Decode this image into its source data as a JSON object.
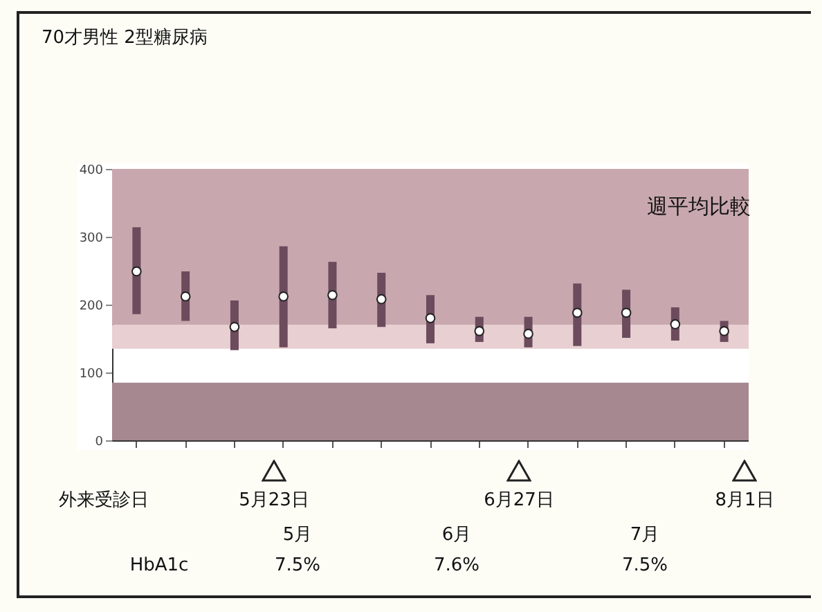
{
  "chart_data": {
    "type": "bar",
    "title": "70才男性  2型糖尿病",
    "categories": [
      null,
      null,
      null,
      null,
      null,
      null,
      null,
      null,
      null,
      null,
      null,
      null,
      null
    ],
    "series": [
      {
        "color": "#6b4b5c",
        "base": [
          186,
          176,
          133,
          137,
          165,
          167,
          143,
          145,
          137,
          139,
          151,
          147,
          145
        ],
        "values": [
          128,
          73,
          73,
          149,
          98,
          80,
          71,
          37,
          45,
          92,
          71,
          49,
          31
        ]
      },
      {
        "type": "scatter",
        "color": "#ffffff",
        "values": [
          249,
          212,
          167,
          212,
          214,
          208,
          180,
          161,
          157,
          188,
          188,
          171,
          161
        ]
      }
    ],
    "marker": "circle",
    "ylim": [
      0,
      400
    ],
    "yticks": [
      0,
      100,
      200,
      300,
      400
    ],
    "bands": [
      {
        "axis": "y",
        "from": 170,
        "to": 400,
        "color": "#c8a8ae"
      },
      {
        "axis": "y",
        "from": 135,
        "to": 170,
        "color": "#e8cfd2"
      },
      {
        "axis": "y",
        "from": 0,
        "to": 85,
        "color": "#a58890"
      }
    ],
    "annotations": [
      "週平均比較",
      "外来受診日",
      "5月23日",
      "6月27日",
      "8月1日",
      "5月",
      "6月",
      "7月",
      "HbA1c",
      "7.5%",
      "7.6%",
      "7.5%"
    ]
  }
}
